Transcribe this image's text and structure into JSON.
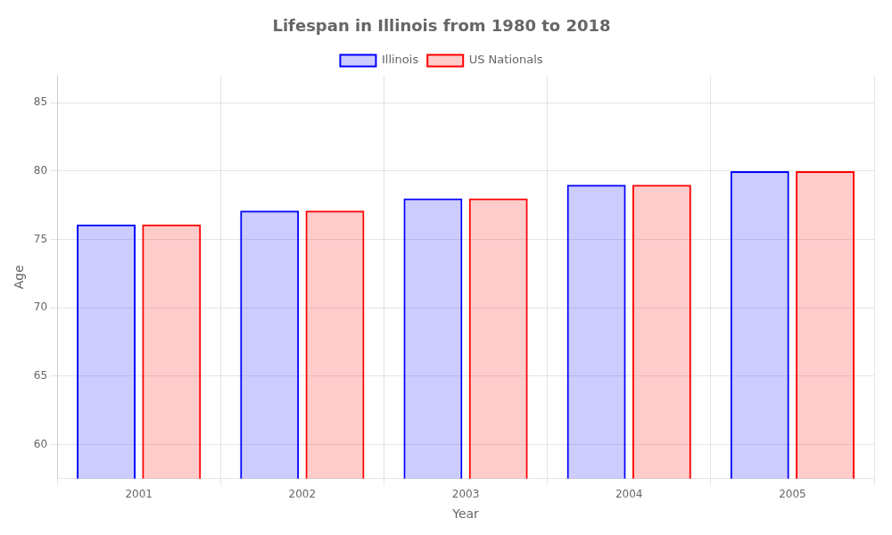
{
  "chart_data": {
    "type": "bar",
    "title": "Lifespan in Illinois from 1980 to 2018",
    "xlabel": "Year",
    "ylabel": "Age",
    "categories": [
      "2001",
      "2002",
      "2003",
      "2004",
      "2005"
    ],
    "series": [
      {
        "name": "Illinois",
        "color": "#0000ff",
        "values": [
          76.1,
          77.1,
          78.0,
          79.0,
          80.0
        ]
      },
      {
        "name": "US Nationals",
        "color": "#ff0000",
        "values": [
          76.1,
          77.1,
          78.0,
          79.0,
          80.0
        ]
      }
    ],
    "ylim": [
      57.5,
      87
    ],
    "yticks": [
      60,
      65,
      70,
      75,
      80,
      85
    ],
    "grid": true,
    "legend": "top"
  }
}
